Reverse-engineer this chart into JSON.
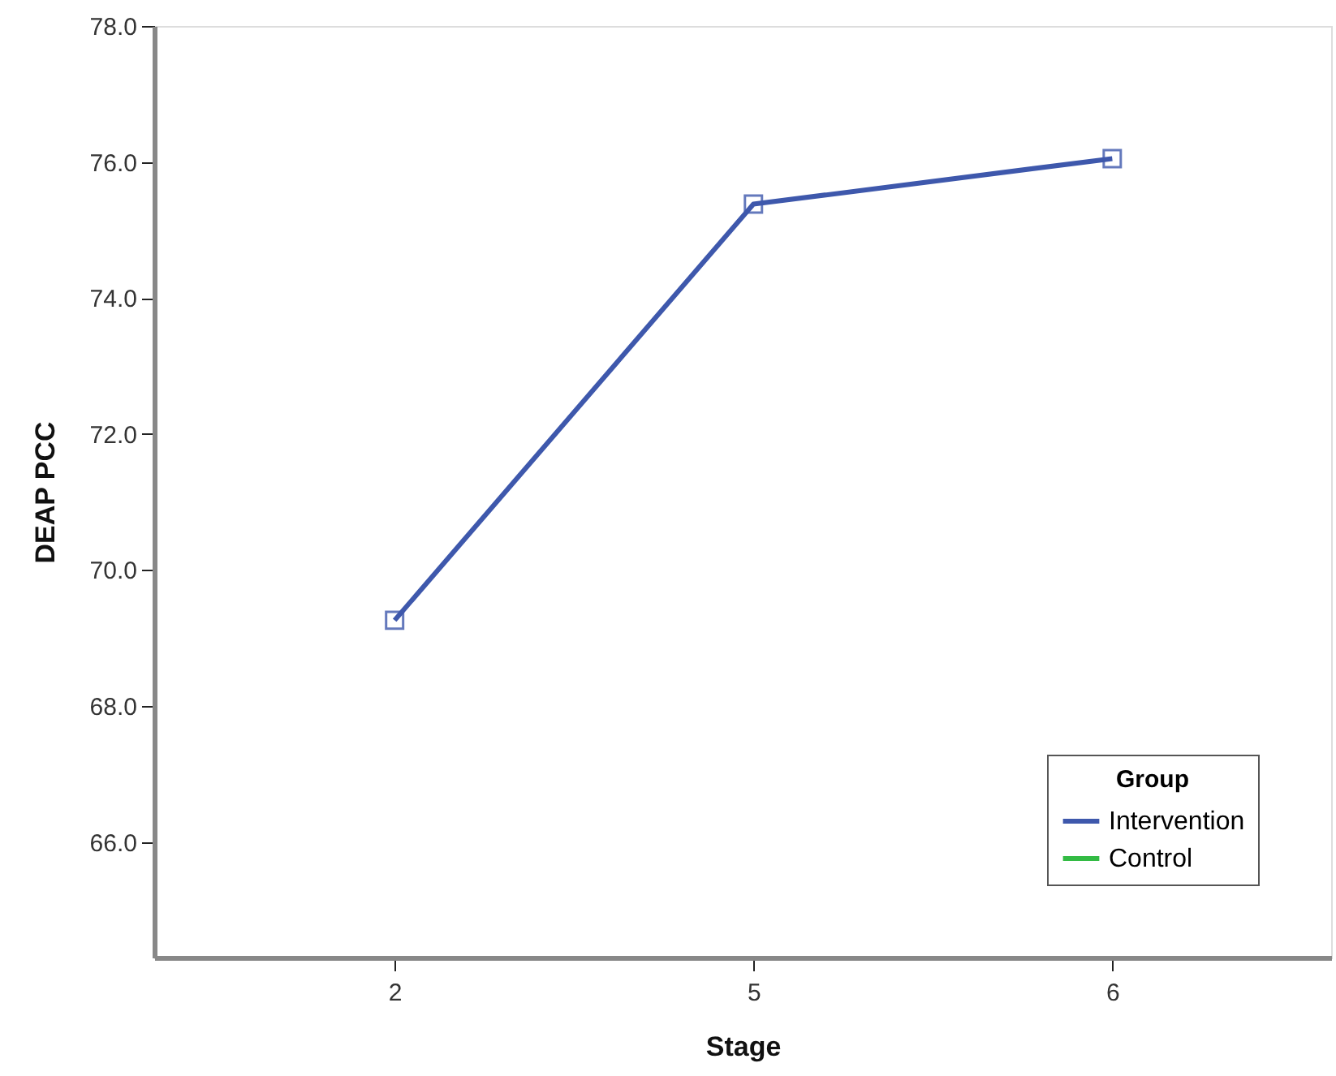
{
  "chart_data": {
    "type": "line",
    "xlabel": "Stage",
    "ylabel": "DEAP PCC",
    "legend_title": "Group",
    "categories": [
      "2",
      "5",
      "6"
    ],
    "series": [
      {
        "name": "Intervention",
        "color": "#3e58ac",
        "values": [
          69.26,
          75.38,
          76.05
        ]
      },
      {
        "name": "Control",
        "color": "#33bb44",
        "values": [
          null,
          null,
          null
        ]
      }
    ],
    "ylim": [
      64.3,
      78.0
    ],
    "yticks": [
      {
        "value": 66,
        "label": "66.0"
      },
      {
        "value": 68,
        "label": "68.0"
      },
      {
        "value": 70,
        "label": "70.0"
      },
      {
        "value": 72,
        "label": "72.0"
      },
      {
        "value": 74,
        "label": "74.0"
      },
      {
        "value": 76,
        "label": "76.0"
      },
      {
        "value": 78,
        "label": "78.0"
      }
    ],
    "marker": "square",
    "line_style": "solid",
    "grid": false,
    "legend": "bottom right"
  }
}
